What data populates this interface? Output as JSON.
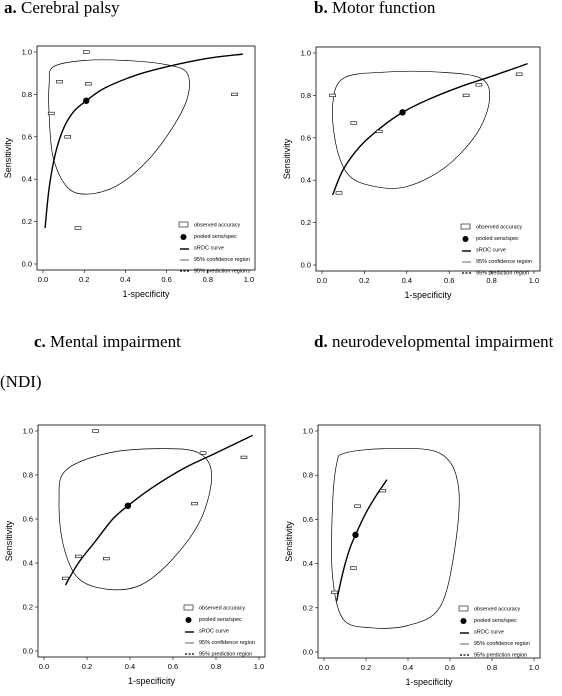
{
  "chart_data": [
    {
      "type": "scatter",
      "letter": "a.",
      "title": "Cerebral palsy",
      "xlabel": "1-specificity",
      "ylabel": "Sensitivity",
      "xlim": [
        0,
        1
      ],
      "ylim": [
        0,
        1
      ],
      "xticks": [
        "0.0",
        "0.2",
        "0.4",
        "0.6",
        "0.8",
        "1.0"
      ],
      "yticks": [
        "0.0",
        "0.2",
        "0.4",
        "0.6",
        "0.8",
        "1.0"
      ],
      "studies": [
        [
          0.04,
          0.71
        ],
        [
          0.08,
          0.86
        ],
        [
          0.12,
          0.6
        ],
        [
          0.17,
          0.17
        ],
        [
          0.21,
          1.0
        ],
        [
          0.22,
          0.85
        ],
        [
          0.93,
          0.8
        ]
      ],
      "pooled": [
        0.21,
        0.77
      ],
      "sroc": [
        [
          0.01,
          0.17
        ],
        [
          0.03,
          0.36
        ],
        [
          0.06,
          0.52
        ],
        [
          0.1,
          0.64
        ],
        [
          0.15,
          0.72
        ],
        [
          0.21,
          0.77
        ],
        [
          0.3,
          0.83
        ],
        [
          0.45,
          0.89
        ],
        [
          0.6,
          0.93
        ],
        [
          0.8,
          0.97
        ],
        [
          0.97,
          0.99
        ]
      ],
      "confidence_region": [
        [
          0.05,
          0.93
        ],
        [
          0.2,
          0.96
        ],
        [
          0.4,
          0.96
        ],
        [
          0.6,
          0.94
        ],
        [
          0.7,
          0.9
        ],
        [
          0.7,
          0.78
        ],
        [
          0.62,
          0.63
        ],
        [
          0.5,
          0.48
        ],
        [
          0.36,
          0.37
        ],
        [
          0.22,
          0.33
        ],
        [
          0.12,
          0.36
        ],
        [
          0.05,
          0.5
        ],
        [
          0.03,
          0.7
        ],
        [
          0.03,
          0.85
        ]
      ],
      "legend": [
        "observed accuracy",
        "pooled sens/spec",
        "sROC curve",
        "95% confidence region",
        "95% prediction region"
      ]
    },
    {
      "type": "scatter",
      "letter": "b.",
      "title": "Motor function",
      "xlabel": "1-specificity",
      "ylabel": "Sensitivity",
      "xlim": [
        0,
        1
      ],
      "ylim": [
        0,
        1
      ],
      "xticks": [
        "0.0",
        "0.2",
        "0.4",
        "0.6",
        "0.8",
        "1.0"
      ],
      "yticks": [
        "0.0",
        "0.2",
        "0.4",
        "0.6",
        "0.8",
        "1.0"
      ],
      "studies": [
        [
          0.05,
          0.8
        ],
        [
          0.08,
          0.34
        ],
        [
          0.15,
          0.67
        ],
        [
          0.27,
          0.63
        ],
        [
          0.68,
          0.8
        ],
        [
          0.74,
          0.85
        ],
        [
          0.93,
          0.9
        ]
      ],
      "pooled": [
        0.38,
        0.72
      ],
      "sroc": [
        [
          0.05,
          0.33
        ],
        [
          0.1,
          0.45
        ],
        [
          0.18,
          0.56
        ],
        [
          0.28,
          0.65
        ],
        [
          0.38,
          0.72
        ],
        [
          0.5,
          0.78
        ],
        [
          0.65,
          0.84
        ],
        [
          0.8,
          0.89
        ],
        [
          0.97,
          0.95
        ]
      ],
      "confidence_region": [
        [
          0.1,
          0.88
        ],
        [
          0.3,
          0.91
        ],
        [
          0.55,
          0.91
        ],
        [
          0.75,
          0.88
        ],
        [
          0.79,
          0.78
        ],
        [
          0.73,
          0.62
        ],
        [
          0.58,
          0.46
        ],
        [
          0.4,
          0.37
        ],
        [
          0.25,
          0.37
        ],
        [
          0.13,
          0.42
        ],
        [
          0.07,
          0.55
        ],
        [
          0.05,
          0.75
        ]
      ],
      "legend": [
        "observed accuracy",
        "pooled sens/spec",
        "sROC curve",
        "95% confidence region",
        "95% prediction region"
      ]
    },
    {
      "type": "scatter",
      "letter": "c.",
      "title": "Mental impairment",
      "subtitle_continuation": "(NDI)",
      "xlabel": "1-specificity",
      "ylabel": "Sensitivity",
      "xlim": [
        0,
        1
      ],
      "ylim": [
        0,
        1
      ],
      "xticks": [
        "0.0",
        "0.2",
        "0.4",
        "0.6",
        "0.8",
        "1.0"
      ],
      "yticks": [
        "0.0",
        "0.2",
        "0.4",
        "0.6",
        "0.8",
        "1.0"
      ],
      "studies": [
        [
          0.1,
          0.33
        ],
        [
          0.16,
          0.43
        ],
        [
          0.24,
          1.0
        ],
        [
          0.29,
          0.42
        ],
        [
          0.7,
          0.67
        ],
        [
          0.74,
          0.9
        ],
        [
          0.93,
          0.88
        ]
      ],
      "pooled": [
        0.39,
        0.66
      ],
      "sroc": [
        [
          0.1,
          0.3
        ],
        [
          0.16,
          0.4
        ],
        [
          0.24,
          0.5
        ],
        [
          0.32,
          0.6
        ],
        [
          0.39,
          0.66
        ],
        [
          0.5,
          0.74
        ],
        [
          0.65,
          0.83
        ],
        [
          0.8,
          0.9
        ],
        [
          0.97,
          0.98
        ]
      ],
      "confidence_region": [
        [
          0.1,
          0.82
        ],
        [
          0.3,
          0.9
        ],
        [
          0.55,
          0.92
        ],
        [
          0.72,
          0.9
        ],
        [
          0.78,
          0.8
        ],
        [
          0.73,
          0.6
        ],
        [
          0.6,
          0.42
        ],
        [
          0.45,
          0.3
        ],
        [
          0.3,
          0.28
        ],
        [
          0.16,
          0.33
        ],
        [
          0.09,
          0.48
        ],
        [
          0.07,
          0.68
        ]
      ],
      "legend": [
        "observed accuracy",
        "pooled sens/spec",
        "sROC curve",
        "95% confidence region",
        "95% prediction region"
      ]
    },
    {
      "type": "scatter",
      "letter": "d.",
      "title": "neurodevelopmental impairment",
      "xlabel": "1-specificity",
      "ylabel": "Sensitivity",
      "xlim": [
        0,
        1
      ],
      "ylim": [
        0,
        1
      ],
      "xticks": [
        "0.0",
        "0.2",
        "0.4",
        "0.6",
        "0.8",
        "1.0"
      ],
      "yticks": [
        "0.0",
        "0.2",
        "0.4",
        "0.6",
        "0.8",
        "1.0"
      ],
      "studies": [
        [
          0.05,
          0.27
        ],
        [
          0.14,
          0.38
        ],
        [
          0.16,
          0.66
        ],
        [
          0.28,
          0.73
        ]
      ],
      "pooled": [
        0.15,
        0.53
      ],
      "sroc": [
        [
          0.06,
          0.23
        ],
        [
          0.09,
          0.36
        ],
        [
          0.12,
          0.46
        ],
        [
          0.15,
          0.53
        ],
        [
          0.2,
          0.63
        ],
        [
          0.25,
          0.71
        ],
        [
          0.3,
          0.78
        ]
      ],
      "confidence_region": [
        [
          0.1,
          0.9
        ],
        [
          0.3,
          0.92
        ],
        [
          0.55,
          0.9
        ],
        [
          0.64,
          0.75
        ],
        [
          0.62,
          0.45
        ],
        [
          0.55,
          0.2
        ],
        [
          0.4,
          0.12
        ],
        [
          0.22,
          0.11
        ],
        [
          0.09,
          0.15
        ],
        [
          0.04,
          0.35
        ],
        [
          0.04,
          0.65
        ],
        [
          0.06,
          0.85
        ]
      ],
      "legend": [
        "observed accuracy",
        "pooled sens/spec",
        "sROC curve",
        "95% confidence region",
        "95% prediction region"
      ]
    }
  ]
}
